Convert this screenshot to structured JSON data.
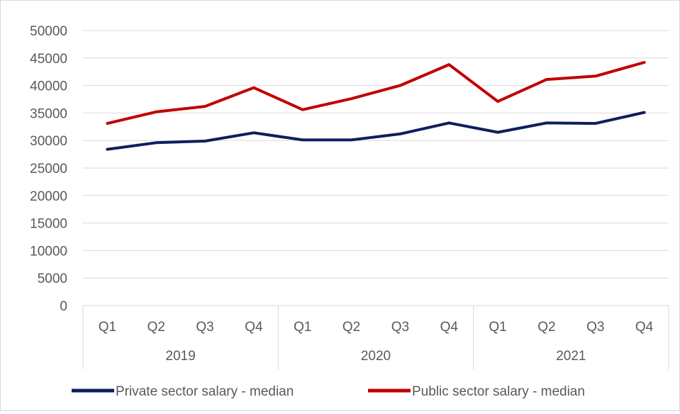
{
  "chart_data": {
    "type": "line",
    "title": "",
    "xlabel": "",
    "ylabel": "",
    "ylim": [
      0,
      50000
    ],
    "yticks": [
      0,
      5000,
      10000,
      15000,
      20000,
      25000,
      30000,
      35000,
      40000,
      45000,
      50000
    ],
    "grid": true,
    "legend_position": "bottom",
    "categories": [
      "Q1",
      "Q2",
      "Q3",
      "Q4",
      "Q1",
      "Q2",
      "Q3",
      "Q4",
      "Q1",
      "Q2",
      "Q3",
      "Q4"
    ],
    "groups": [
      {
        "label": "2019",
        "count": 4
      },
      {
        "label": "2020",
        "count": 4
      },
      {
        "label": "2021",
        "count": 4
      }
    ],
    "series": [
      {
        "name": "Private sector salary - median",
        "color": "#0d1f5c",
        "values": [
          28400,
          29600,
          29900,
          31400,
          30100,
          30100,
          31200,
          33200,
          31500,
          33200,
          33100,
          35100
        ]
      },
      {
        "name": "Public sector salary - median",
        "color": "#c00000",
        "values": [
          33100,
          35200,
          36200,
          39600,
          35600,
          37600,
          40000,
          43800,
          37100,
          41100,
          41700,
          44200
        ]
      }
    ]
  }
}
